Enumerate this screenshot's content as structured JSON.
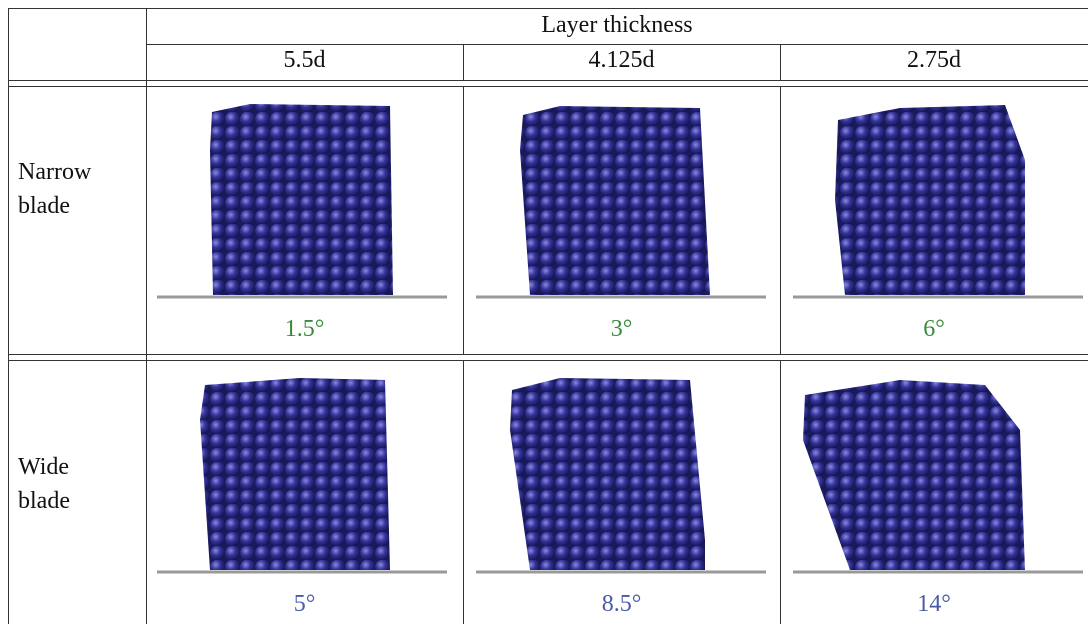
{
  "header": {
    "title": "Layer thickness",
    "columns": [
      "5.5d",
      "4.125d",
      "2.75d"
    ]
  },
  "rows": [
    {
      "label": "Narrow blade",
      "angles": [
        "1.5°",
        "3°",
        "6°"
      ]
    },
    {
      "label": "Wide blade",
      "angles": [
        "5°",
        "8.5°",
        "14°"
      ]
    }
  ]
}
